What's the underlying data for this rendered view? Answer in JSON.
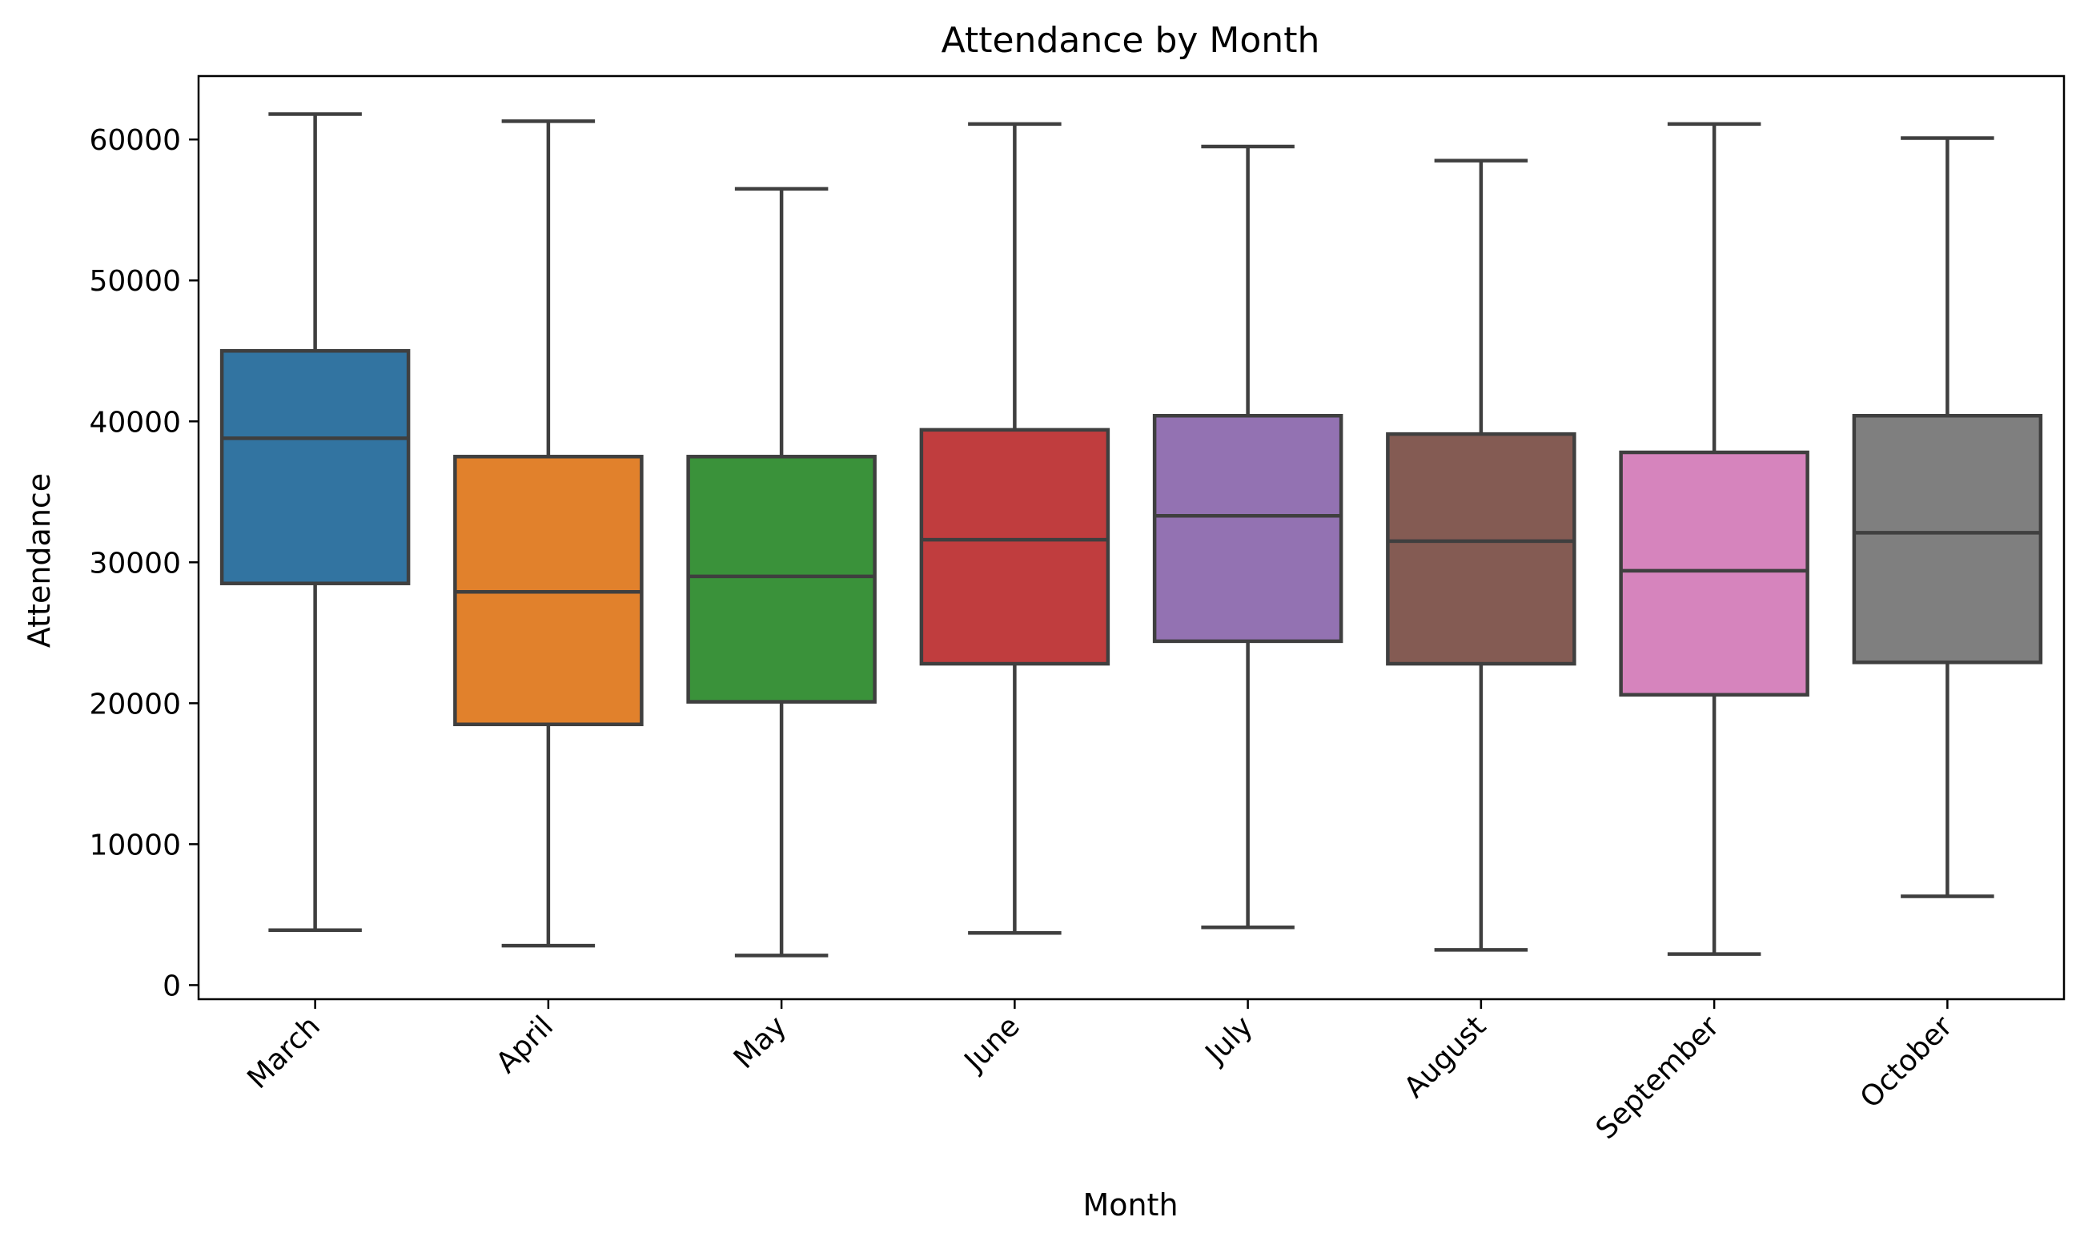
{
  "chart_data": {
    "type": "boxplot",
    "title": "Attendance by Month",
    "xlabel": "Month",
    "ylabel": "Attendance",
    "ylim": [
      -1000,
      64500
    ],
    "yticks": [
      0,
      10000,
      20000,
      30000,
      40000,
      50000,
      60000
    ],
    "ytick_labels": [
      "0",
      "10000",
      "20000",
      "30000",
      "40000",
      "50000",
      "60000"
    ],
    "grid": false,
    "legend": "none",
    "categories": [
      "March",
      "April",
      "May",
      "June",
      "July",
      "August",
      "September",
      "October"
    ],
    "boxes": [
      {
        "category": "March",
        "min": 3900,
        "q1": 28500,
        "median": 38800,
        "q3": 45000,
        "max": 61800,
        "color": "#3274a1"
      },
      {
        "category": "April",
        "min": 2800,
        "q1": 18500,
        "median": 27900,
        "q3": 37500,
        "max": 61300,
        "color": "#e1812c"
      },
      {
        "category": "May",
        "min": 2100,
        "q1": 20100,
        "median": 29000,
        "q3": 37500,
        "max": 56500,
        "color": "#3a923a"
      },
      {
        "category": "June",
        "min": 3700,
        "q1": 22800,
        "median": 31600,
        "q3": 39400,
        "max": 61100,
        "color": "#c03d3e"
      },
      {
        "category": "July",
        "min": 4100,
        "q1": 24400,
        "median": 33300,
        "q3": 40400,
        "max": 59500,
        "color": "#9372b2"
      },
      {
        "category": "August",
        "min": 2500,
        "q1": 22800,
        "median": 31500,
        "q3": 39100,
        "max": 58500,
        "color": "#845b53"
      },
      {
        "category": "September",
        "min": 2200,
        "q1": 20600,
        "median": 29400,
        "q3": 37800,
        "max": 61100,
        "color": "#d684bd"
      },
      {
        "category": "October",
        "min": 6300,
        "q1": 22900,
        "median": 32100,
        "q3": 40400,
        "max": 60100,
        "color": "#7f7f7f"
      }
    ]
  }
}
